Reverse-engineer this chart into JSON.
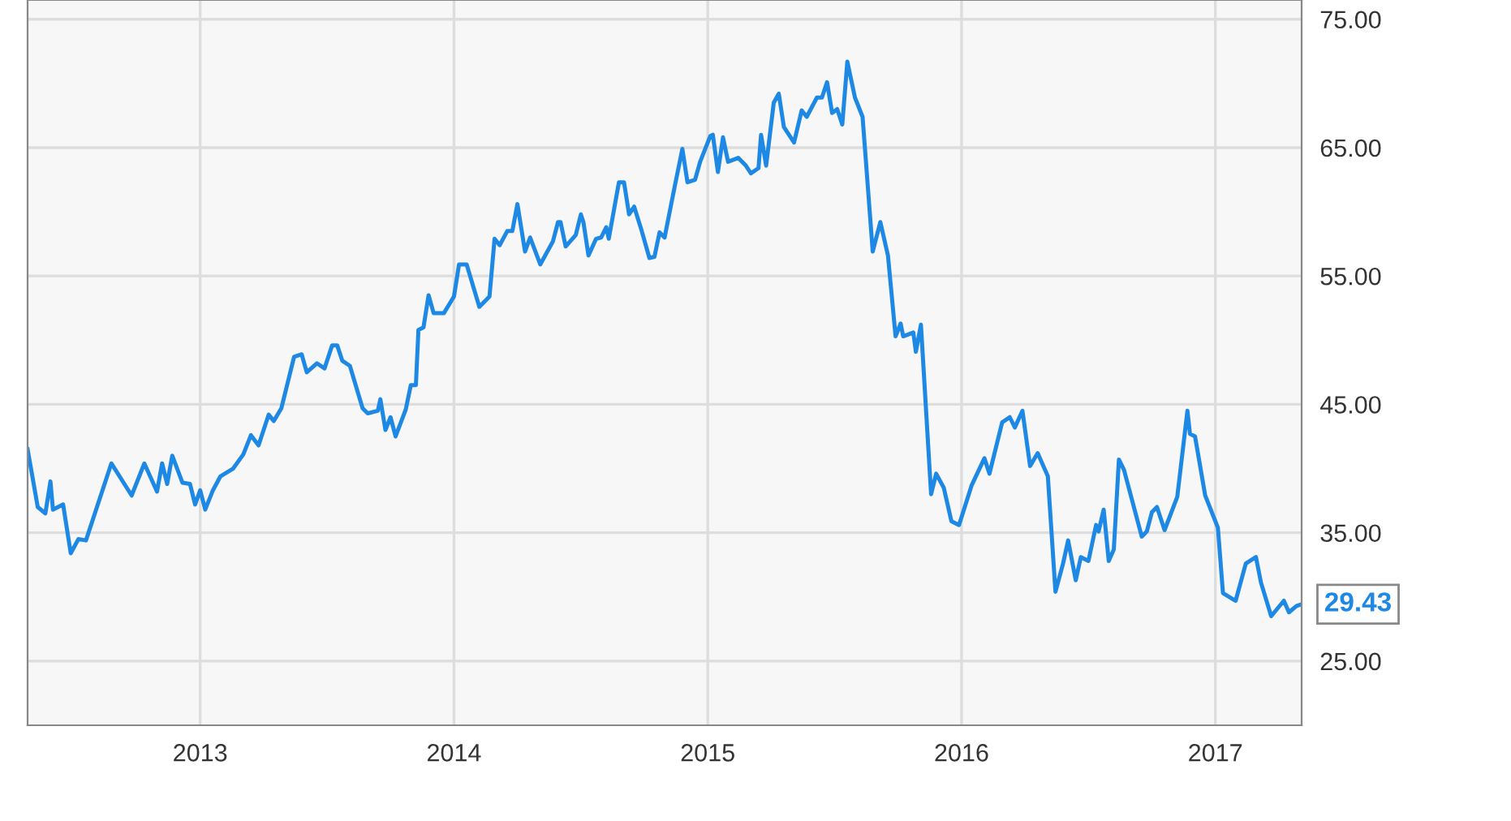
{
  "chart_data": {
    "type": "line",
    "x": [
      2012.32,
      2012.36,
      2012.39,
      2012.41,
      2012.42,
      2012.46,
      2012.49,
      2012.52,
      2012.55,
      2012.65,
      2012.73,
      2012.78,
      2012.83,
      2012.85,
      2012.87,
      2012.89,
      2012.93,
      2012.96,
      2012.98,
      2013.0,
      2013.02,
      2013.05,
      2013.08,
      2013.13,
      2013.17,
      2013.2,
      2013.23,
      2013.27,
      2013.29,
      2013.32,
      2013.37,
      2013.4,
      2013.42,
      2013.46,
      2013.49,
      2013.52,
      2013.54,
      2013.56,
      2013.59,
      2013.64,
      2013.66,
      2013.7,
      2013.71,
      2013.73,
      2013.75,
      2013.77,
      2013.81,
      2013.83,
      2013.85,
      2013.86,
      2013.88,
      2013.9,
      2013.92,
      2013.96,
      2014.0,
      2014.02,
      2014.05,
      2014.1,
      2014.14,
      2014.16,
      2014.18,
      2014.21,
      2014.23,
      2014.25,
      2014.28,
      2014.3,
      2014.34,
      2014.39,
      2014.41,
      2014.42,
      2014.44,
      2014.48,
      2014.5,
      2014.51,
      2014.53,
      2014.56,
      2014.58,
      2014.6,
      2014.61,
      2014.65,
      2014.67,
      2014.69,
      2014.71,
      2014.74,
      2014.77,
      2014.79,
      2014.81,
      2014.83,
      2014.87,
      2014.9,
      2014.92,
      2014.95,
      2014.97,
      2015.01,
      2015.02,
      2015.04,
      2015.06,
      2015.08,
      2015.12,
      2015.15,
      2015.17,
      2015.2,
      2015.21,
      2015.23,
      2015.26,
      2015.28,
      2015.3,
      2015.34,
      2015.37,
      2015.39,
      2015.43,
      2015.45,
      2015.47,
      2015.49,
      2015.51,
      2015.53,
      2015.55,
      2015.58,
      2015.61,
      2015.65,
      2015.68,
      2015.71,
      2015.74,
      2015.76,
      2015.77,
      2015.81,
      2015.82,
      2015.84,
      2015.88,
      2015.9,
      2015.93,
      2015.96,
      2015.99,
      2016.04,
      2016.09,
      2016.11,
      2016.16,
      2016.19,
      2016.21,
      2016.24,
      2016.27,
      2016.3,
      2016.34,
      2016.37,
      2016.4,
      2016.42,
      2016.45,
      2016.47,
      2016.5,
      2016.53,
      2016.54,
      2016.56,
      2016.58,
      2016.6,
      2016.62,
      2016.64,
      2016.71,
      2016.73,
      2016.75,
      2016.77,
      2016.8,
      2016.85,
      2016.89,
      2016.9,
      2016.92,
      2016.96,
      2017.01,
      2017.03,
      2017.08,
      2017.12,
      2017.16,
      2017.18,
      2017.22,
      2017.27,
      2017.29,
      2017.32,
      2017.34
    ],
    "series": [
      {
        "color": "#1e88e5",
        "values": [
          41.5,
          37.0,
          36.5,
          39.0,
          36.8,
          37.2,
          33.4,
          34.5,
          34.4,
          40.4,
          37.9,
          40.4,
          38.2,
          40.4,
          38.8,
          41.0,
          38.9,
          38.8,
          37.2,
          38.3,
          36.8,
          38.3,
          39.4,
          40.0,
          41.1,
          42.6,
          41.8,
          44.2,
          43.7,
          44.7,
          48.7,
          48.9,
          47.5,
          48.2,
          47.8,
          49.6,
          49.6,
          48.4,
          48.0,
          44.7,
          44.3,
          44.5,
          45.4,
          43.0,
          44.0,
          42.5,
          44.6,
          46.5,
          46.5,
          50.8,
          51.0,
          53.5,
          52.1,
          52.1,
          53.4,
          55.9,
          55.9,
          52.6,
          53.4,
          57.9,
          57.4,
          58.5,
          58.5,
          60.6,
          56.9,
          58.0,
          55.9,
          57.7,
          59.2,
          59.2,
          57.3,
          58.2,
          59.8,
          59.2,
          56.6,
          57.9,
          58.0,
          58.8,
          57.9,
          62.3,
          62.3,
          59.8,
          60.4,
          58.5,
          56.4,
          56.5,
          58.4,
          58.0,
          62.0,
          64.9,
          62.3,
          62.5,
          63.9,
          65.9,
          66.0,
          63.1,
          65.8,
          63.9,
          64.2,
          63.6,
          63.0,
          63.4,
          66.0,
          63.6,
          68.5,
          69.2,
          66.6,
          65.4,
          67.9,
          67.4,
          68.9,
          68.9,
          70.1,
          67.7,
          68.0,
          66.8,
          71.7,
          68.9,
          67.4,
          56.9,
          59.2,
          56.6,
          50.3,
          51.3,
          50.3,
          50.6,
          49.1,
          51.2,
          38.0,
          39.6,
          38.5,
          35.9,
          35.6,
          38.7,
          40.8,
          39.6,
          43.6,
          44.0,
          43.2,
          44.5,
          40.2,
          41.2,
          39.4,
          30.4,
          32.6,
          34.4,
          31.3,
          33.1,
          32.8,
          35.6,
          35.1,
          36.8,
          32.8,
          33.7,
          40.7,
          39.9,
          34.7,
          35.1,
          36.6,
          37.0,
          35.2,
          37.8,
          44.5,
          42.7,
          42.5,
          37.9,
          35.4,
          30.3,
          29.7,
          32.6,
          33.1,
          31.1,
          28.5,
          29.7,
          28.8,
          29.3,
          29.43
        ]
      }
    ],
    "xlim": [
      2012.32,
      2017.34
    ],
    "xticks": [
      2013,
      2014,
      2015,
      2016,
      2017
    ],
    "ylim": [
      20,
      76.5
    ],
    "yticks": [
      {
        "value": 25,
        "label": "25.00"
      },
      {
        "value": 35,
        "label": "35.00"
      },
      {
        "value": 45,
        "label": "45.00"
      },
      {
        "value": 55,
        "label": "55.00"
      },
      {
        "value": 65,
        "label": "65.00"
      },
      {
        "value": 75,
        "label": "75.00"
      }
    ],
    "grid": true,
    "annotations": [
      {
        "text": "29.43",
        "x": 2017.34,
        "y": 29.43
      }
    ]
  }
}
